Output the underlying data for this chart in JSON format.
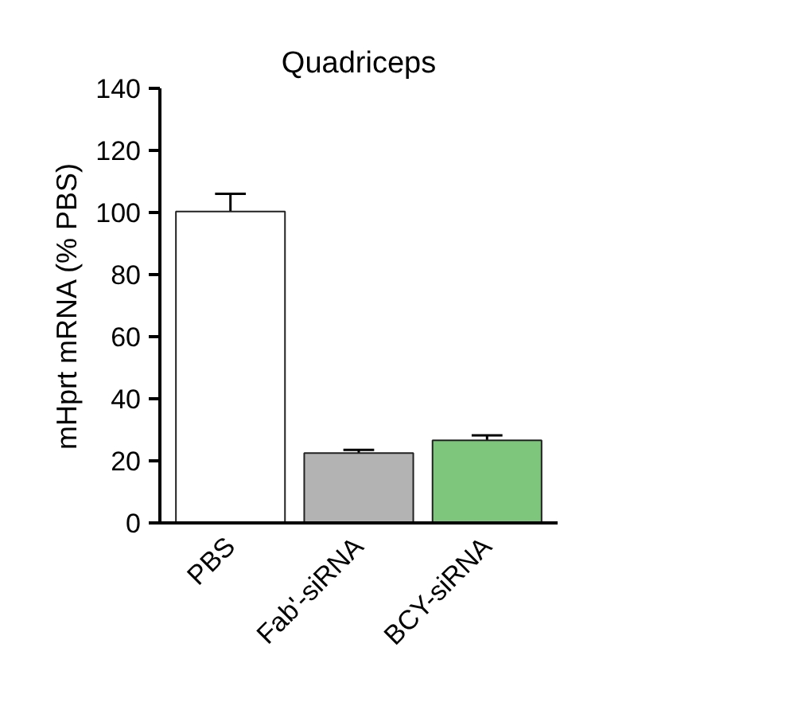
{
  "chart_data": {
    "type": "bar",
    "title": "Quadriceps",
    "ylabel": "mHprt mRNA (% PBS)",
    "categories": [
      "PBS",
      "Fab'-siRNA",
      "BCY-siRNA"
    ],
    "values": [
      100.3,
      22.5,
      26.6
    ],
    "errors": [
      5.7,
      1.0,
      1.6
    ],
    "colors": [
      "#ffffff",
      "#b3b3b3",
      "#7dc67c"
    ],
    "ylim": [
      0,
      140
    ],
    "yticks": [
      0,
      20,
      40,
      60,
      80,
      100,
      120,
      140
    ],
    "grid": false
  }
}
